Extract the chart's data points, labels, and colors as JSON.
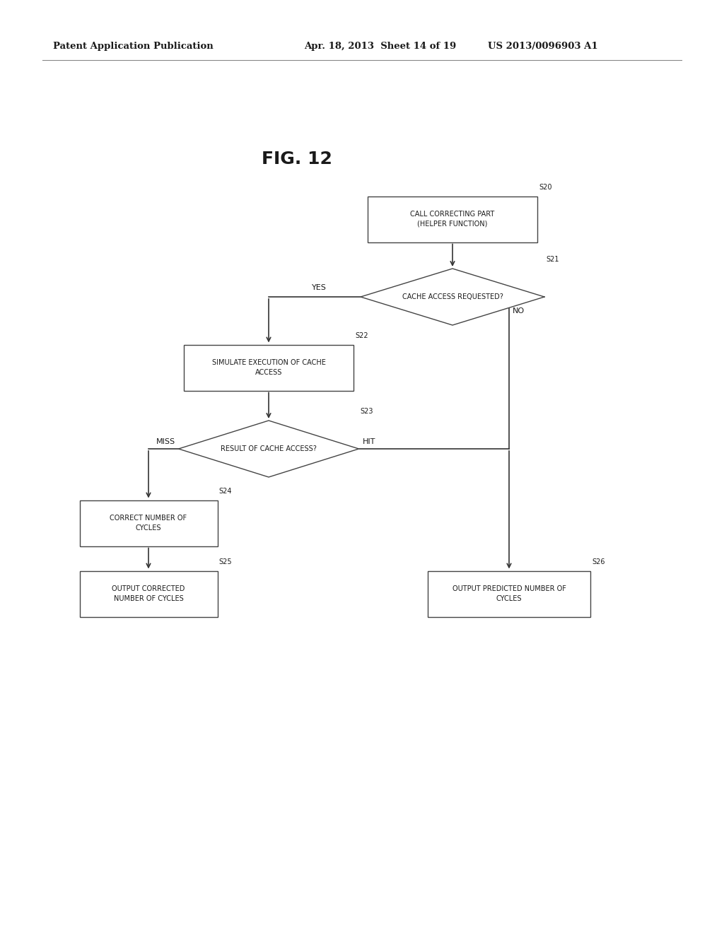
{
  "bg_color": "#ffffff",
  "header_left": "Patent Application Publication",
  "header_mid": "Apr. 18, 2013  Sheet 14 of 19",
  "header_right": "US 2013/0096903 A1",
  "fig_label": "FIG. 12",
  "text_color": "#1a1a1a",
  "box_edge_color": "#444444",
  "arrow_color": "#333333",
  "font_size_box": 7.0,
  "font_size_tag": 7.0,
  "font_size_arrow_label": 8.0,
  "font_size_header": 9.5,
  "font_size_fig": 18
}
